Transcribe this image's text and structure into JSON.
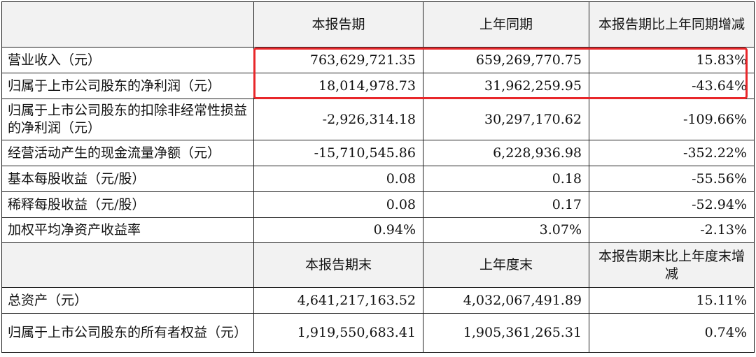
{
  "header1": {
    "c1": "本报告期",
    "c2": "上年同期",
    "c3": "本报告期比上年同期增减"
  },
  "rows1": [
    {
      "label": "营业收入（元）",
      "v1": "763,629,721.35",
      "v2": "659,269,770.75",
      "v3": "15.83%"
    },
    {
      "label": "归属于上市公司股东的净利润（元）",
      "v1": "18,014,978.73",
      "v2": "31,962,259.95",
      "v3": "-43.64%"
    },
    {
      "label": "归属于上市公司股东的扣除非经常性损益的净利润（元）",
      "v1": "-2,926,314.18",
      "v2": "30,297,170.62",
      "v3": "-109.66%"
    },
    {
      "label": "经营活动产生的现金流量净额（元）",
      "v1": "-15,710,545.86",
      "v2": "6,228,936.98",
      "v3": "-352.22%"
    },
    {
      "label": "基本每股收益（元/股）",
      "v1": "0.08",
      "v2": "0.18",
      "v3": "-55.56%"
    },
    {
      "label": "稀释每股收益（元/股）",
      "v1": "0.08",
      "v2": "0.17",
      "v3": "-52.94%"
    },
    {
      "label": "加权平均净资产收益率",
      "v1": "0.94%",
      "v2": "3.07%",
      "v3": "-2.13%"
    }
  ],
  "header2": {
    "c1": "本报告期末",
    "c2": "上年度末",
    "c3": "本报告期末比上年度末增减"
  },
  "rows2": [
    {
      "label": "总资产（元）",
      "v1": "4,641,217,163.52",
      "v2": "4,032,067,491.89",
      "v3": "15.11%"
    },
    {
      "label": "归属于上市公司股东的所有者权益（元）",
      "v1": "1,919,550,683.41",
      "v2": "1,905,361,265.31",
      "v3": "0.74%"
    }
  ],
  "highlight_color": "#e8272a"
}
